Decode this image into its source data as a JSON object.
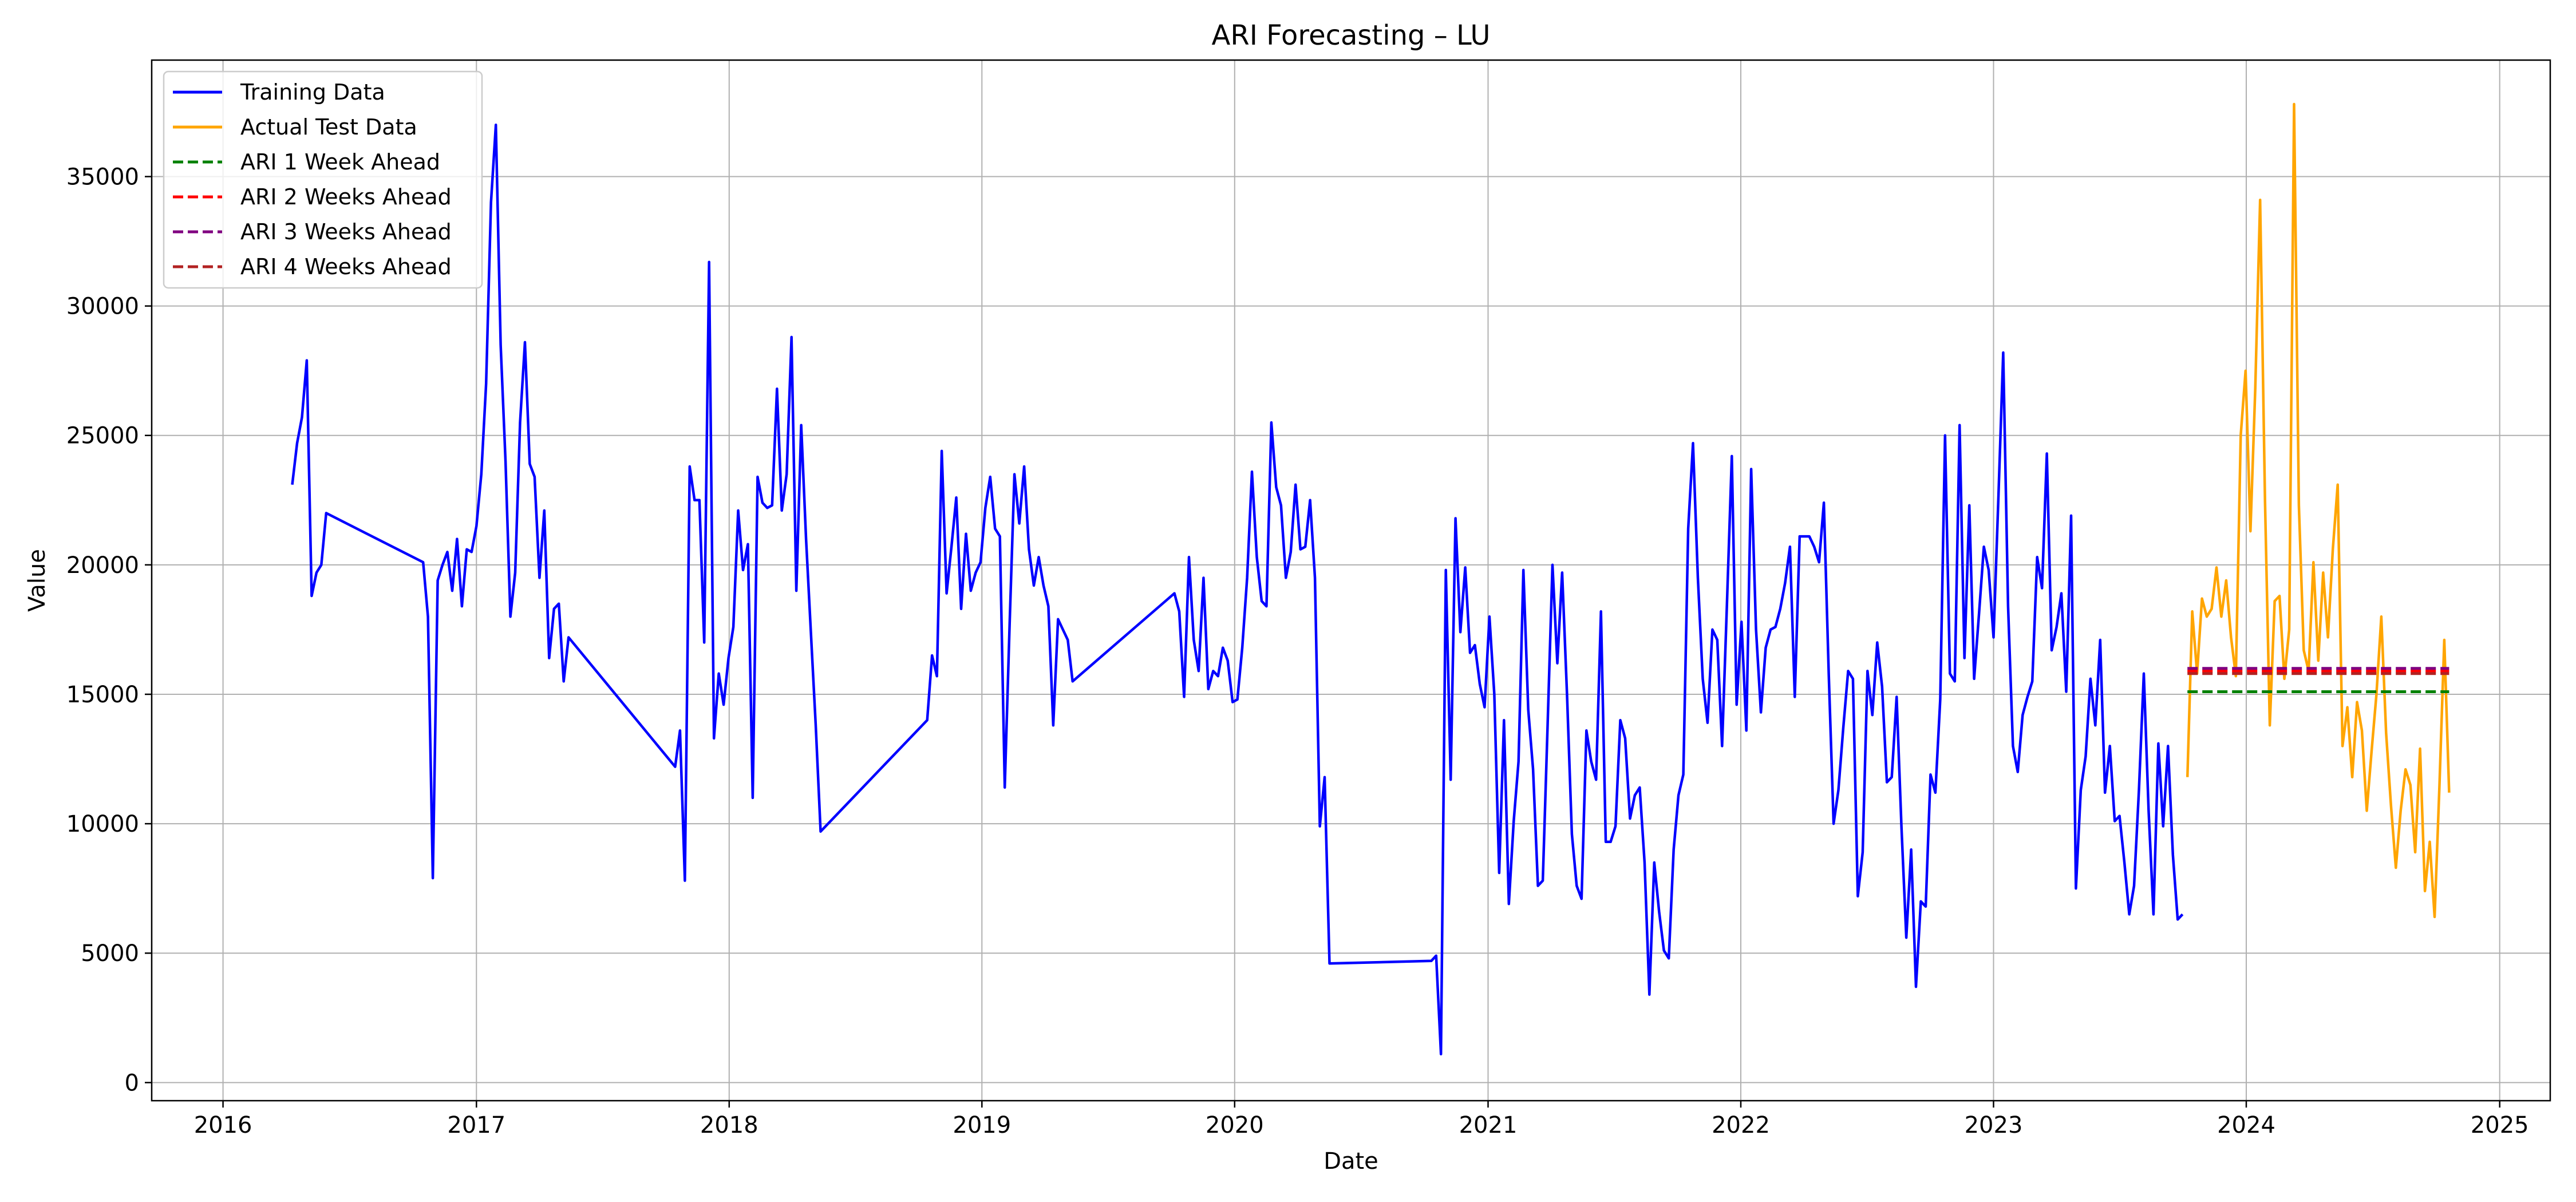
{
  "chart_data": {
    "type": "line",
    "title": "ARI Forecasting – LU",
    "xlabel": "Date",
    "ylabel": "Value",
    "xlim": [
      "2015-09-20",
      "2025-03-15"
    ],
    "ylim": [
      -700,
      39500
    ],
    "grid": true,
    "legend_position": "top-left",
    "x_ticks": [
      "2016",
      "2017",
      "2018",
      "2019",
      "2020",
      "2021",
      "2022",
      "2023",
      "2024",
      "2025"
    ],
    "y_ticks": [
      0,
      5000,
      10000,
      15000,
      20000,
      25000,
      30000,
      35000
    ],
    "series": [
      {
        "name": "Training Data",
        "color": "#0000ff",
        "style": "solid",
        "x": [
          "2016-04-10",
          "2016-04-17",
          "2016-04-24",
          "2016-05-01",
          "2016-05-08",
          "2016-05-15",
          "2016-05-22",
          "2016-05-29",
          "2016-10-16",
          "2016-10-23",
          "2016-10-30",
          "2016-11-06",
          "2016-11-13",
          "2016-11-20",
          "2016-11-27",
          "2016-12-04",
          "2016-12-11",
          "2016-12-18",
          "2016-12-25",
          "2017-01-01",
          "2017-01-08",
          "2017-01-15",
          "2017-01-22",
          "2017-01-29",
          "2017-02-05",
          "2017-02-12",
          "2017-02-19",
          "2017-02-26",
          "2017-03-05",
          "2017-03-12",
          "2017-03-19",
          "2017-03-26",
          "2017-04-02",
          "2017-04-09",
          "2017-04-16",
          "2017-04-23",
          "2017-04-30",
          "2017-05-07",
          "2017-05-14",
          "2017-10-15",
          "2017-10-22",
          "2017-10-29",
          "2017-11-05",
          "2017-11-12",
          "2017-11-19",
          "2017-11-26",
          "2017-12-03",
          "2017-12-10",
          "2017-12-17",
          "2017-12-24",
          "2017-12-31",
          "2018-01-07",
          "2018-01-14",
          "2018-01-21",
          "2018-01-28",
          "2018-02-04",
          "2018-02-11",
          "2018-02-18",
          "2018-02-25",
          "2018-03-04",
          "2018-03-11",
          "2018-03-18",
          "2018-03-25",
          "2018-04-01",
          "2018-04-08",
          "2018-04-15",
          "2018-04-22",
          "2018-04-29",
          "2018-05-06",
          "2018-05-13",
          "2018-10-14",
          "2018-10-21",
          "2018-10-28",
          "2018-11-04",
          "2018-11-11",
          "2018-11-18",
          "2018-11-25",
          "2018-12-02",
          "2018-12-09",
          "2018-12-16",
          "2018-12-23",
          "2018-12-30",
          "2019-01-06",
          "2019-01-13",
          "2019-01-20",
          "2019-01-27",
          "2019-02-03",
          "2019-02-10",
          "2019-02-17",
          "2019-02-24",
          "2019-03-03",
          "2019-03-10",
          "2019-03-17",
          "2019-03-24",
          "2019-03-31",
          "2019-04-07",
          "2019-04-14",
          "2019-04-21",
          "2019-04-28",
          "2019-05-05",
          "2019-05-12",
          "2019-10-06",
          "2019-10-13",
          "2019-10-20",
          "2019-10-27",
          "2019-11-03",
          "2019-11-10",
          "2019-11-17",
          "2019-11-24",
          "2019-12-01",
          "2019-12-08",
          "2019-12-15",
          "2019-12-22",
          "2019-12-29",
          "2020-01-05",
          "2020-01-12",
          "2020-01-19",
          "2020-01-26",
          "2020-02-02",
          "2020-02-09",
          "2020-02-16",
          "2020-02-23",
          "2020-03-01",
          "2020-03-08",
          "2020-03-15",
          "2020-03-22",
          "2020-03-29",
          "2020-04-05",
          "2020-04-12",
          "2020-04-19",
          "2020-04-26",
          "2020-05-03",
          "2020-05-10",
          "2020-05-17",
          "2020-10-11",
          "2020-10-18",
          "2020-10-25",
          "2020-11-01",
          "2020-11-08",
          "2020-11-15",
          "2020-11-22",
          "2020-11-29",
          "2020-12-06",
          "2020-12-13",
          "2020-12-20",
          "2020-12-27",
          "2021-01-03",
          "2021-01-10",
          "2021-01-17",
          "2021-01-24",
          "2021-01-31",
          "2021-02-07",
          "2021-02-14",
          "2021-02-21",
          "2021-02-28",
          "2021-03-07",
          "2021-03-14",
          "2021-03-21",
          "2021-03-28",
          "2021-04-04",
          "2021-04-11",
          "2021-04-18",
          "2021-04-25",
          "2021-05-02",
          "2021-05-09",
          "2021-05-16",
          "2021-05-23",
          "2021-05-30",
          "2021-06-06",
          "2021-06-13",
          "2021-06-20",
          "2021-06-27",
          "2021-07-04",
          "2021-07-11",
          "2021-07-18",
          "2021-07-25",
          "2021-08-01",
          "2021-08-08",
          "2021-08-15",
          "2021-08-22",
          "2021-08-29",
          "2021-09-05",
          "2021-09-12",
          "2021-09-19",
          "2021-09-26",
          "2021-10-03",
          "2021-10-10",
          "2021-10-17",
          "2021-10-24",
          "2021-10-31",
          "2021-11-07",
          "2021-11-14",
          "2021-11-21",
          "2021-11-28",
          "2021-12-05",
          "2021-12-12",
          "2021-12-19",
          "2021-12-26",
          "2022-01-02",
          "2022-01-09",
          "2022-01-16",
          "2022-01-23",
          "2022-01-30",
          "2022-02-06",
          "2022-02-13",
          "2022-02-20",
          "2022-02-27",
          "2022-03-06",
          "2022-03-13",
          "2022-03-20",
          "2022-03-27",
          "2022-04-03",
          "2022-04-10",
          "2022-04-17",
          "2022-04-24",
          "2022-05-01",
          "2022-05-08",
          "2022-05-15",
          "2022-05-22",
          "2022-05-29",
          "2022-06-05",
          "2022-06-12",
          "2022-06-19",
          "2022-06-26",
          "2022-07-03",
          "2022-07-10",
          "2022-07-17",
          "2022-07-24",
          "2022-07-31",
          "2022-08-07",
          "2022-08-14",
          "2022-08-21",
          "2022-08-28",
          "2022-09-04",
          "2022-09-11",
          "2022-09-18",
          "2022-09-25",
          "2022-10-02",
          "2022-10-09",
          "2022-10-16",
          "2022-10-23",
          "2022-10-30",
          "2022-11-06",
          "2022-11-13",
          "2022-11-20",
          "2022-11-27",
          "2022-12-04",
          "2022-12-11",
          "2022-12-18",
          "2022-12-25",
          "2023-01-01",
          "2023-01-08",
          "2023-01-15",
          "2023-01-22",
          "2023-01-29",
          "2023-02-05",
          "2023-02-12",
          "2023-02-19",
          "2023-02-26",
          "2023-03-05",
          "2023-03-12",
          "2023-03-19",
          "2023-03-26",
          "2023-04-02",
          "2023-04-09",
          "2023-04-16",
          "2023-04-23",
          "2023-04-30",
          "2023-05-07",
          "2023-05-14",
          "2023-05-21",
          "2023-05-28",
          "2023-06-04",
          "2023-06-11",
          "2023-06-18",
          "2023-06-25",
          "2023-07-02",
          "2023-07-09",
          "2023-07-16",
          "2023-07-23",
          "2023-07-30",
          "2023-08-06",
          "2023-08-13",
          "2023-08-20",
          "2023-08-27",
          "2023-09-03",
          "2023-09-10",
          "2023-09-17",
          "2023-09-24",
          "2023-10-01"
        ],
        "y": [
          23100,
          24700,
          25700,
          27900,
          18800,
          19700,
          20000,
          22000,
          20100,
          18000,
          7900,
          19400,
          20000,
          20500,
          19000,
          21000,
          18400,
          20600,
          20500,
          21500,
          23500,
          27000,
          34000,
          37000,
          28500,
          24000,
          18000,
          19700,
          25500,
          28600,
          23900,
          23400,
          19500,
          22100,
          16400,
          18300,
          18500,
          15500,
          17200,
          12200,
          13600,
          7800,
          23800,
          22500,
          22500,
          17000,
          31700,
          13300,
          15800,
          14600,
          16400,
          17600,
          22100,
          19800,
          20800,
          11000,
          23400,
          22400,
          22200,
          22300,
          26800,
          22100,
          23500,
          28800,
          19000,
          25400,
          21000,
          17400,
          13800,
          9700,
          14000,
          16500,
          15700,
          24400,
          18900,
          20700,
          22600,
          18300,
          21200,
          19000,
          19700,
          20100,
          22200,
          23400,
          21400,
          21100,
          11400,
          17700,
          23500,
          21600,
          23800,
          20600,
          19200,
          20300,
          19200,
          18400,
          13800,
          17900,
          17500,
          17100,
          15500,
          18900,
          18200,
          14900,
          20300,
          17100,
          15900,
          19500,
          15200,
          15900,
          15700,
          16800,
          16300,
          14700,
          14800,
          16800,
          19500,
          23600,
          20300,
          18600,
          18400,
          25500,
          23000,
          22300,
          19500,
          20500,
          23100,
          20600,
          20700,
          22500,
          19500,
          9900,
          11800,
          4600,
          4700,
          4900,
          1100,
          19800,
          11700,
          21800,
          17400,
          19900,
          16600,
          16900,
          15400,
          14500,
          18000,
          15000,
          8100,
          14000,
          6900,
          10100,
          12400,
          19800,
          14400,
          12100,
          7600,
          7800,
          13800,
          20000,
          16200,
          19700,
          15000,
          9600,
          7600,
          7100,
          13600,
          12400,
          11700,
          18200,
          9300,
          9300,
          9900,
          14000,
          13300,
          10200,
          11100,
          11400,
          8500,
          3400,
          8500,
          6600,
          5100,
          4800,
          9000,
          11100,
          11900,
          21400,
          24700,
          19500,
          15600,
          13900,
          17500,
          17100,
          13000,
          18500,
          24200,
          14600,
          17800,
          13600,
          23700,
          17500,
          14300,
          16800,
          17500,
          17600,
          18300,
          19300,
          20700,
          14900,
          21100,
          21100,
          21100,
          20700,
          20100,
          22400,
          15800,
          10000,
          11300,
          13700,
          15900,
          15600,
          7200,
          8900,
          15900,
          14200,
          17000,
          15300,
          11600,
          11800,
          14900,
          9900,
          5600,
          9000,
          3700,
          7000,
          6800,
          11900,
          11200,
          14800,
          25000,
          15800,
          15500,
          25400,
          16400,
          22300,
          15600,
          18100,
          20700,
          19800,
          17200,
          22600,
          28200,
          18400,
          13000,
          12000,
          14200,
          14900,
          15500,
          20300,
          19100,
          24300,
          16700,
          17600,
          18900,
          15100,
          21900,
          7500,
          11300,
          12600,
          15600,
          13800,
          17100,
          11200,
          13000,
          10100,
          10300,
          8500,
          6500,
          7600,
          11300,
          15800,
          10500,
          6500,
          13100,
          9900,
          13000,
          8800,
          6300,
          6500
        ]
      },
      {
        "name": "Actual Test Data",
        "color": "#ffa500",
        "style": "solid",
        "x": [
          "2023-10-08",
          "2023-10-15",
          "2023-10-22",
          "2023-10-29",
          "2023-11-05",
          "2023-11-12",
          "2023-11-19",
          "2023-11-26",
          "2023-12-03",
          "2023-12-10",
          "2023-12-17",
          "2023-12-24",
          "2023-12-31",
          "2024-01-07",
          "2024-01-14",
          "2024-01-21",
          "2024-01-28",
          "2024-02-04",
          "2024-02-11",
          "2024-02-18",
          "2024-02-25",
          "2024-03-03",
          "2024-03-10",
          "2024-03-17",
          "2024-03-24",
          "2024-03-31",
          "2024-04-07",
          "2024-04-14",
          "2024-04-21",
          "2024-04-28",
          "2024-05-05",
          "2024-05-12",
          "2024-05-19",
          "2024-05-26",
          "2024-06-02",
          "2024-06-09",
          "2024-06-16",
          "2024-06-23",
          "2024-06-30",
          "2024-07-07",
          "2024-07-14",
          "2024-07-21",
          "2024-07-28",
          "2024-08-04",
          "2024-08-11",
          "2024-08-18",
          "2024-08-25",
          "2024-09-01",
          "2024-09-08",
          "2024-09-15",
          "2024-09-22",
          "2024-09-29",
          "2024-10-06",
          "2024-10-13",
          "2024-10-20"
        ],
        "y": [
          11800,
          18200,
          15800,
          18700,
          18000,
          18300,
          19900,
          18000,
          19400,
          17200,
          15700,
          25000,
          27500,
          21300,
          26800,
          34100,
          22500,
          13800,
          18600,
          18800,
          15600,
          17500,
          37800,
          22300,
          16700,
          15900,
          20100,
          16300,
          19700,
          17200,
          20600,
          23100,
          13000,
          14500,
          11800,
          14700,
          13600,
          10500,
          12800,
          15000,
          18000,
          13500,
          10700,
          8300,
          10500,
          12100,
          11500,
          8900,
          12900,
          7400,
          9300,
          6400,
          11500,
          17100,
          11200
        ]
      },
      {
        "name": "ARI 1 Week Ahead",
        "color": "#008000",
        "style": "dashed",
        "x": [
          "2023-10-08",
          "2024-10-20"
        ],
        "y": [
          15100,
          15100
        ]
      },
      {
        "name": "ARI 2 Weeks Ahead",
        "color": "#ff0000",
        "style": "dashed",
        "x": [
          "2023-10-08",
          "2024-10-20"
        ],
        "y": [
          15900,
          15900
        ]
      },
      {
        "name": "ARI 3 Weeks Ahead",
        "color": "#800080",
        "style": "dashed",
        "x": [
          "2023-10-08",
          "2024-10-20"
        ],
        "y": [
          16000,
          16000
        ]
      },
      {
        "name": "ARI 4 Weeks Ahead",
        "color": "#b22222",
        "style": "dashed",
        "x": [
          "2023-10-08",
          "2024-10-20"
        ],
        "y": [
          15800,
          15800
        ]
      }
    ]
  }
}
